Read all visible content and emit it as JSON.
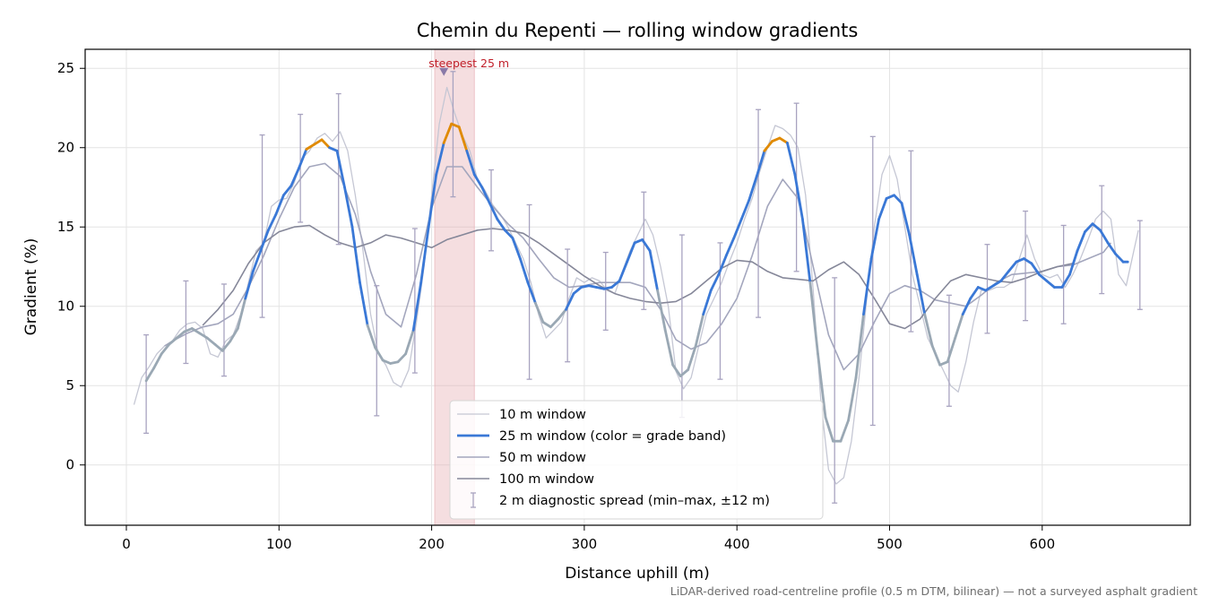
{
  "chart_data": {
    "type": "line",
    "title": "Chemin du Repenti — rolling window gradients",
    "xlabel": "Distance uphill (m)",
    "ylabel": "Gradient (%)",
    "xlim": [
      -27,
      697
    ],
    "ylim": [
      -3.8,
      26.2
    ],
    "xticks": [
      0,
      100,
      200,
      300,
      400,
      500,
      600
    ],
    "yticks": [
      0,
      5,
      10,
      15,
      20,
      25
    ],
    "grid": true,
    "legend_position": "lower-center",
    "footnote": "LiDAR-derived road-centreline profile (0.5 m DTM, bilinear) — not a surveyed asphalt gradient",
    "highlight": {
      "x_range": [
        202,
        228
      ],
      "label": "steepest 25 m",
      "marker_x": 208,
      "marker_y": 24.8,
      "color": "#e6a8ae"
    },
    "grade_bands": [
      {
        "min": 0,
        "max": 10,
        "color": "#9aa8b4"
      },
      {
        "min": 10,
        "max": 20,
        "color": "#3a78d6"
      },
      {
        "min": 20,
        "max": 99,
        "color": "#e08a00"
      }
    ],
    "series": [
      {
        "name": "10 m window",
        "color": "#c5c7d4",
        "width": 1.3,
        "kind": "line",
        "x": [
          5,
          10,
          15,
          20,
          25,
          30,
          35,
          40,
          45,
          50,
          55,
          60,
          65,
          70,
          75,
          80,
          85,
          90,
          95,
          100,
          105,
          110,
          115,
          120,
          125,
          130,
          135,
          140,
          145,
          150,
          155,
          160,
          165,
          170,
          175,
          180,
          185,
          190,
          195,
          200,
          205,
          210,
          215,
          220,
          225,
          230,
          235,
          240,
          245,
          250,
          255,
          260,
          265,
          270,
          275,
          280,
          285,
          290,
          295,
          300,
          305,
          310,
          315,
          320,
          325,
          330,
          335,
          340,
          345,
          350,
          355,
          360,
          365,
          370,
          375,
          380,
          385,
          390,
          395,
          400,
          405,
          410,
          415,
          420,
          425,
          430,
          435,
          440,
          445,
          450,
          455,
          460,
          465,
          470,
          475,
          480,
          485,
          490,
          495,
          500,
          505,
          510,
          515,
          520,
          525,
          530,
          535,
          540,
          545,
          550,
          555,
          560,
          565,
          570,
          575,
          580,
          585,
          590,
          595,
          600,
          605,
          610,
          615,
          620,
          625,
          630,
          635,
          640,
          645,
          650,
          655,
          660,
          663
        ],
        "y": [
          3.8,
          5.5,
          6.2,
          7.0,
          7.5,
          7.8,
          8.5,
          8.9,
          9.0,
          8.6,
          7.0,
          6.8,
          7.8,
          8.2,
          9.5,
          11.5,
          13.5,
          14.0,
          16.3,
          16.7,
          16.8,
          17.8,
          19.3,
          19.8,
          20.6,
          20.9,
          20.4,
          21.0,
          19.8,
          17.0,
          13.5,
          9.5,
          7.0,
          6.3,
          5.2,
          4.9,
          6.0,
          9.0,
          12.5,
          17.0,
          21.5,
          23.8,
          22.2,
          20.8,
          19.8,
          18.0,
          17.3,
          16.4,
          15.8,
          15.0,
          14.0,
          13.0,
          11.5,
          9.5,
          8.0,
          8.5,
          9.0,
          10.5,
          11.8,
          11.5,
          11.8,
          11.6,
          11.0,
          10.8,
          12.2,
          13.5,
          14.5,
          15.5,
          14.5,
          12.5,
          10.0,
          5.9,
          4.8,
          5.5,
          7.5,
          9.5,
          10.5,
          11.5,
          12.8,
          14.0,
          15.5,
          16.8,
          18.5,
          20.0,
          21.4,
          21.2,
          20.8,
          20.0,
          17.0,
          11.0,
          4.0,
          -0.3,
          -1.2,
          -0.8,
          1.5,
          5.5,
          10.5,
          15.0,
          18.3,
          19.5,
          18.0,
          15.0,
          12.0,
          10.0,
          8.0,
          7.0,
          6.0,
          5.0,
          4.6,
          6.5,
          9.0,
          11.0,
          11.0,
          11.2,
          11.2,
          11.5,
          13.0,
          14.5,
          13.0,
          12.0,
          11.8,
          12.0,
          11.2,
          12.0,
          13.0,
          14.2,
          15.5,
          16.0,
          15.5,
          12.0,
          11.3,
          13.5,
          14.8
        ]
      },
      {
        "name": "25 m window (color = grade band)",
        "color": "#3a78d6",
        "width": 2.8,
        "kind": "band-line",
        "x": [
          13,
          18,
          23,
          28,
          33,
          38,
          43,
          48,
          53,
          58,
          63,
          68,
          73,
          78,
          83,
          88,
          93,
          98,
          103,
          108,
          113,
          118,
          123,
          128,
          133,
          138,
          143,
          148,
          153,
          158,
          163,
          168,
          173,
          178,
          183,
          188,
          193,
          198,
          203,
          208,
          213,
          218,
          223,
          228,
          233,
          238,
          243,
          248,
          253,
          258,
          263,
          268,
          273,
          278,
          283,
          288,
          293,
          298,
          303,
          308,
          313,
          318,
          323,
          328,
          333,
          338,
          343,
          348,
          353,
          358,
          363,
          368,
          373,
          378,
          383,
          388,
          393,
          398,
          403,
          408,
          413,
          418,
          423,
          428,
          433,
          438,
          443,
          448,
          453,
          458,
          463,
          468,
          473,
          478,
          483,
          488,
          493,
          498,
          503,
          508,
          513,
          518,
          523,
          528,
          533,
          538,
          543,
          548,
          553,
          558,
          563,
          568,
          573,
          578,
          583,
          588,
          593,
          598,
          603,
          608,
          613,
          618,
          623,
          628,
          633,
          638,
          643,
          648,
          653,
          656
        ],
        "y": [
          5.3,
          6.1,
          7.0,
          7.6,
          8.0,
          8.4,
          8.6,
          8.3,
          8.0,
          7.6,
          7.2,
          7.8,
          8.6,
          10.5,
          12.2,
          13.5,
          14.8,
          15.8,
          17.0,
          17.6,
          18.7,
          19.9,
          20.2,
          20.5,
          20.0,
          19.8,
          17.5,
          15.0,
          11.5,
          8.8,
          7.4,
          6.6,
          6.4,
          6.5,
          7.0,
          8.5,
          11.5,
          15.0,
          18.3,
          20.3,
          21.5,
          21.3,
          19.8,
          18.3,
          17.5,
          16.5,
          15.5,
          14.8,
          14.3,
          13.0,
          11.5,
          10.2,
          9.0,
          8.7,
          9.2,
          9.8,
          10.8,
          11.2,
          11.3,
          11.2,
          11.1,
          11.2,
          11.6,
          12.8,
          14.0,
          14.2,
          13.5,
          11.0,
          8.5,
          6.3,
          5.6,
          6.0,
          7.5,
          9.5,
          11.0,
          12.0,
          13.2,
          14.3,
          15.5,
          16.7,
          18.2,
          19.8,
          20.4,
          20.6,
          20.3,
          18.3,
          15.5,
          11.5,
          7.0,
          3.0,
          1.5,
          1.5,
          2.8,
          5.5,
          9.5,
          13.0,
          15.5,
          16.8,
          17.0,
          16.5,
          14.5,
          12.0,
          9.5,
          7.5,
          6.3,
          6.5,
          8.0,
          9.5,
          10.5,
          11.2,
          11.0,
          11.3,
          11.6,
          12.2,
          12.8,
          13.0,
          12.7,
          12.0,
          11.6,
          11.2,
          11.2,
          12.0,
          13.5,
          14.7,
          15.2,
          14.8,
          14.0,
          13.3,
          12.8,
          12.8
        ]
      },
      {
        "name": "50 m window",
        "color": "#a3a6bd",
        "width": 1.6,
        "kind": "line",
        "x": [
          25,
          30,
          40,
          50,
          60,
          70,
          80,
          90,
          100,
          110,
          120,
          130,
          140,
          150,
          160,
          170,
          180,
          190,
          200,
          210,
          220,
          230,
          240,
          250,
          260,
          270,
          280,
          290,
          300,
          310,
          320,
          330,
          340,
          350,
          360,
          370,
          380,
          390,
          400,
          410,
          420,
          430,
          440,
          450,
          460,
          470,
          480,
          490,
          500,
          510,
          520,
          530,
          540,
          550,
          560,
          570,
          580,
          590,
          600,
          610,
          620,
          630,
          640,
          645
        ],
        "y": [
          7.5,
          7.8,
          8.3,
          8.7,
          8.9,
          9.5,
          11.2,
          13.2,
          15.5,
          17.5,
          18.8,
          19.0,
          18.2,
          15.8,
          12.2,
          9.5,
          8.7,
          12.0,
          16.2,
          18.8,
          18.8,
          17.5,
          16.3,
          15.2,
          14.3,
          13.0,
          11.8,
          11.2,
          11.3,
          11.5,
          11.5,
          11.5,
          11.2,
          9.8,
          7.9,
          7.3,
          7.7,
          8.9,
          10.5,
          13.2,
          16.3,
          18.0,
          16.8,
          12.5,
          8.2,
          6.0,
          7.0,
          9.0,
          10.8,
          11.3,
          11.0,
          10.4,
          10.2,
          10.0,
          10.7,
          11.5,
          12.0,
          12.1,
          12.2,
          12.5,
          12.6,
          13.0,
          13.4,
          14.0
        ]
      },
      {
        "name": "100 m window",
        "color": "#858799",
        "width": 1.6,
        "kind": "line",
        "x": [
          50,
          60,
          70,
          80,
          90,
          100,
          110,
          120,
          130,
          140,
          150,
          160,
          170,
          180,
          190,
          200,
          210,
          220,
          230,
          240,
          250,
          260,
          270,
          280,
          290,
          300,
          310,
          320,
          330,
          340,
          350,
          360,
          370,
          380,
          390,
          400,
          410,
          420,
          430,
          440,
          450,
          460,
          470,
          480,
          490,
          500,
          510,
          520,
          530,
          540,
          550,
          560,
          570,
          580,
          590,
          600,
          610,
          620
        ],
        "y": [
          8.8,
          9.8,
          11.0,
          12.7,
          14.0,
          14.7,
          15.0,
          15.1,
          14.5,
          14.0,
          13.7,
          14.0,
          14.5,
          14.3,
          14.0,
          13.7,
          14.2,
          14.5,
          14.8,
          14.9,
          14.8,
          14.6,
          14.0,
          13.3,
          12.6,
          11.9,
          11.3,
          10.8,
          10.5,
          10.3,
          10.2,
          10.3,
          10.8,
          11.6,
          12.4,
          12.9,
          12.8,
          12.2,
          11.8,
          11.7,
          11.6,
          12.3,
          12.8,
          12.0,
          10.5,
          8.9,
          8.6,
          9.2,
          10.5,
          11.6,
          12.0,
          11.8,
          11.6,
          11.5,
          11.8,
          12.2,
          12.5,
          12.7
        ]
      },
      {
        "name": "2 m diagnostic spread (min–max, ±12 m)",
        "color": "#a8a3c0",
        "width": 1.3,
        "kind": "errorbar",
        "x": [
          13,
          39,
          64,
          89,
          114,
          139,
          164,
          189,
          214,
          239,
          264,
          289,
          314,
          339,
          364,
          389,
          414,
          439,
          464,
          489,
          514,
          539,
          564,
          589,
          614,
          639,
          664
        ],
        "low": [
          2.0,
          6.4,
          5.6,
          9.3,
          15.3,
          13.9,
          3.1,
          5.8,
          16.9,
          13.5,
          5.4,
          6.5,
          8.5,
          9.8,
          3.0,
          5.4,
          9.3,
          12.2,
          -2.4,
          2.5,
          8.4,
          3.7,
          8.3,
          9.1,
          8.9,
          10.8,
          9.8
        ],
        "high": [
          8.2,
          11.6,
          11.4,
          20.8,
          22.1,
          23.4,
          11.3,
          14.9,
          24.8,
          18.6,
          16.4,
          13.6,
          13.4,
          17.2,
          14.5,
          14.0,
          22.4,
          22.8,
          11.8,
          20.7,
          19.8,
          10.7,
          13.9,
          16.0,
          15.1,
          17.6,
          15.4
        ]
      }
    ]
  }
}
